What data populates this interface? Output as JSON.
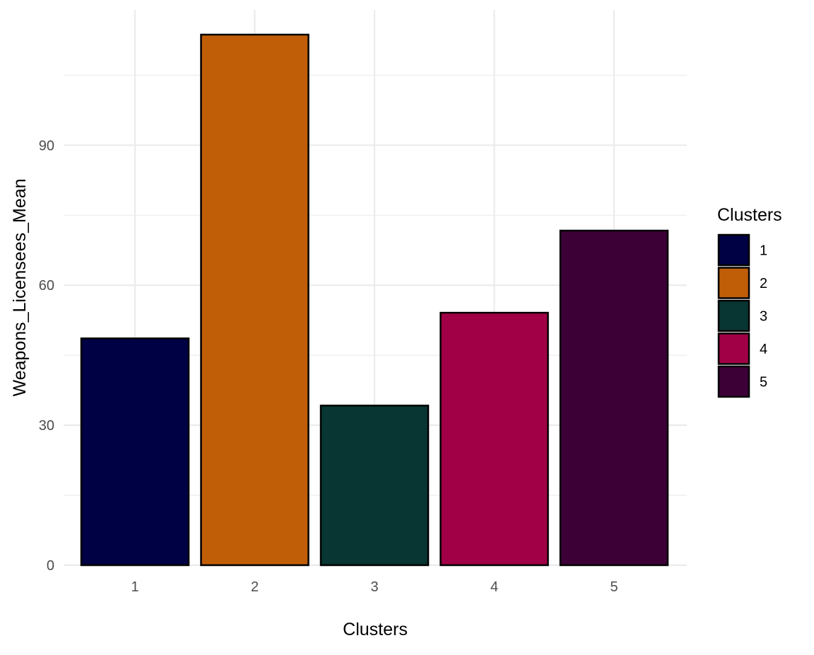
{
  "chart_data": {
    "type": "bar",
    "categories": [
      "1",
      "2",
      "3",
      "4",
      "5"
    ],
    "values": [
      48.6,
      113.7,
      34.2,
      54.1,
      71.7
    ],
    "colors": [
      "#000044",
      "#C05E07",
      "#083632",
      "#A10047",
      "#3C0037"
    ],
    "xlabel": "Clusters",
    "ylabel": "Weapons_Licensees_Mean",
    "ylim": [
      0,
      119
    ],
    "yticks": [
      0,
      30,
      60,
      90
    ],
    "grid": true,
    "legend": {
      "title": "Clusters",
      "position": "right",
      "items": [
        "1",
        "2",
        "3",
        "4",
        "5"
      ]
    }
  }
}
